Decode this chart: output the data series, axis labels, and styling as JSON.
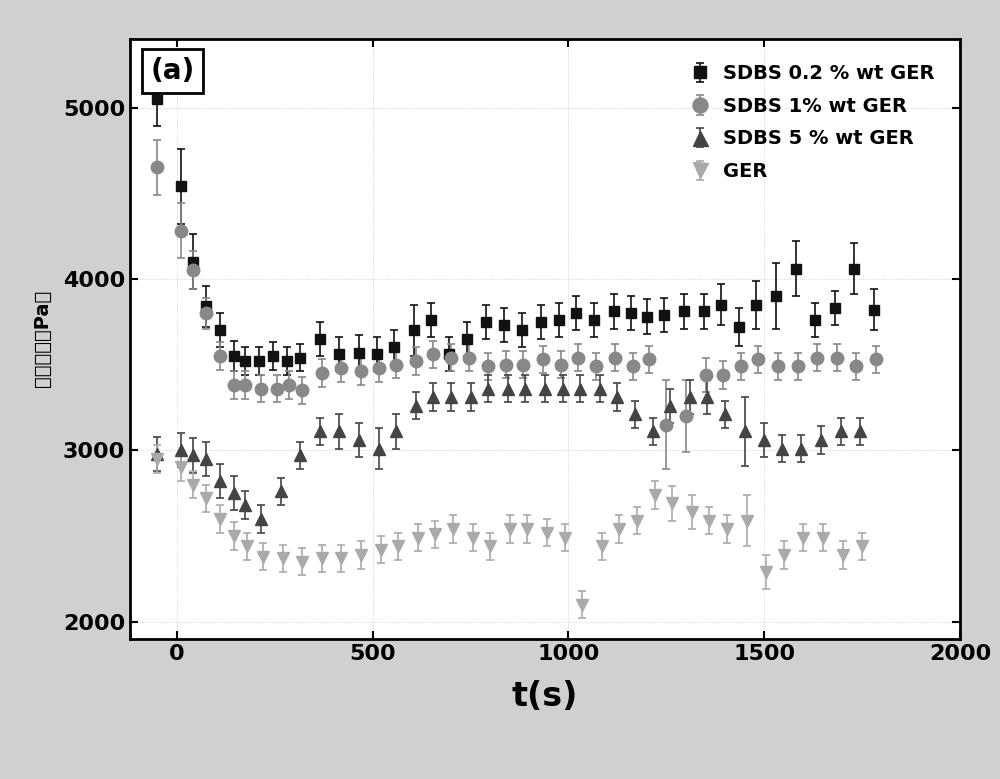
{
  "title": "(a)",
  "xlabel": "t(s)",
  "ylabel": "屈服应力（Pa）",
  "xlim": [
    -120,
    2000
  ],
  "ylim": [
    1900,
    5400
  ],
  "yticks": [
    2000,
    3000,
    4000,
    5000
  ],
  "xticks": [
    0,
    500,
    1000,
    1500,
    2000
  ],
  "outer_bg": "#d0d0d0",
  "plot_bg": "#ffffff",
  "series": [
    {
      "label": "SDBS 0.2 % wt GER",
      "color": "#111111",
      "marker": "s",
      "markersize": 7,
      "x": [
        -50,
        10,
        40,
        75,
        110,
        145,
        175,
        210,
        245,
        280,
        315,
        365,
        415,
        465,
        510,
        555,
        605,
        650,
        695,
        740,
        790,
        835,
        880,
        930,
        975,
        1020,
        1065,
        1115,
        1160,
        1200,
        1245,
        1295,
        1345,
        1390,
        1435,
        1480,
        1530,
        1580,
        1630,
        1680,
        1730,
        1780
      ],
      "y": [
        5050,
        4540,
        4100,
        3840,
        3700,
        3550,
        3520,
        3520,
        3550,
        3520,
        3540,
        3650,
        3560,
        3570,
        3560,
        3600,
        3700,
        3760,
        3560,
        3650,
        3750,
        3730,
        3700,
        3750,
        3760,
        3800,
        3760,
        3810,
        3800,
        3780,
        3790,
        3810,
        3810,
        3850,
        3720,
        3850,
        3900,
        4060,
        3760,
        3830,
        4060,
        3820
      ],
      "yerr": [
        160,
        220,
        160,
        120,
        100,
        90,
        80,
        80,
        80,
        80,
        80,
        100,
        100,
        100,
        100,
        100,
        150,
        100,
        100,
        100,
        100,
        100,
        100,
        100,
        100,
        100,
        100,
        100,
        100,
        100,
        100,
        100,
        100,
        120,
        110,
        140,
        190,
        160,
        100,
        100,
        150,
        120
      ]
    },
    {
      "label": "SDBS 1% wt GER",
      "color": "#888888",
      "marker": "o",
      "markersize": 9,
      "x": [
        -50,
        10,
        40,
        75,
        110,
        145,
        175,
        215,
        255,
        285,
        320,
        370,
        420,
        470,
        515,
        560,
        610,
        655,
        700,
        745,
        795,
        840,
        885,
        935,
        980,
        1025,
        1070,
        1120,
        1165,
        1205,
        1250,
        1300,
        1350,
        1395,
        1440,
        1485,
        1535,
        1585,
        1635,
        1685,
        1735,
        1785
      ],
      "y": [
        4650,
        4280,
        4050,
        3800,
        3550,
        3380,
        3380,
        3360,
        3360,
        3380,
        3350,
        3450,
        3480,
        3460,
        3480,
        3500,
        3520,
        3560,
        3540,
        3540,
        3490,
        3500,
        3500,
        3530,
        3500,
        3540,
        3490,
        3540,
        3490,
        3530,
        3150,
        3200,
        3440,
        3440,
        3490,
        3530,
        3490,
        3490,
        3540,
        3540,
        3490,
        3530
      ],
      "yerr": [
        160,
        160,
        110,
        90,
        80,
        80,
        80,
        80,
        80,
        80,
        80,
        80,
        80,
        80,
        80,
        80,
        80,
        80,
        80,
        80,
        80,
        80,
        80,
        80,
        80,
        80,
        80,
        80,
        80,
        80,
        260,
        210,
        100,
        80,
        80,
        80,
        80,
        80,
        80,
        80,
        80,
        80
      ]
    },
    {
      "label": "SDBS 5 % wt GER",
      "color": "#444444",
      "marker": "^",
      "markersize": 9,
      "x": [
        -50,
        10,
        40,
        75,
        110,
        145,
        175,
        215,
        265,
        315,
        365,
        415,
        465,
        515,
        560,
        610,
        655,
        700,
        750,
        795,
        845,
        890,
        940,
        985,
        1030,
        1080,
        1125,
        1170,
        1215,
        1260,
        1310,
        1355,
        1400,
        1450,
        1500,
        1545,
        1595,
        1645,
        1695,
        1745
      ],
      "y": [
        2980,
        3000,
        2970,
        2950,
        2820,
        2750,
        2680,
        2600,
        2760,
        2970,
        3110,
        3110,
        3060,
        3010,
        3110,
        3260,
        3310,
        3310,
        3310,
        3360,
        3360,
        3360,
        3360,
        3360,
        3360,
        3360,
        3310,
        3210,
        3110,
        3260,
        3310,
        3310,
        3210,
        3110,
        3060,
        3010,
        3010,
        3060,
        3110,
        3110
      ],
      "yerr": [
        100,
        100,
        100,
        100,
        100,
        100,
        80,
        80,
        80,
        80,
        80,
        100,
        100,
        120,
        100,
        80,
        80,
        80,
        80,
        80,
        80,
        80,
        80,
        80,
        80,
        80,
        80,
        80,
        80,
        100,
        100,
        100,
        80,
        200,
        100,
        80,
        80,
        80,
        80,
        80
      ]
    },
    {
      "label": "GER",
      "color": "#aaaaaa",
      "marker": "v",
      "markersize": 9,
      "x": [
        -50,
        10,
        40,
        75,
        110,
        145,
        180,
        220,
        270,
        320,
        370,
        420,
        470,
        520,
        565,
        615,
        660,
        705,
        755,
        800,
        850,
        895,
        945,
        990,
        1035,
        1085,
        1130,
        1175,
        1220,
        1265,
        1315,
        1360,
        1405,
        1455,
        1505,
        1550,
        1600,
        1650,
        1700,
        1750
      ],
      "y": [
        2950,
        2900,
        2800,
        2720,
        2600,
        2500,
        2440,
        2380,
        2370,
        2350,
        2370,
        2370,
        2390,
        2420,
        2440,
        2490,
        2510,
        2540,
        2490,
        2440,
        2540,
        2540,
        2520,
        2490,
        2100,
        2440,
        2540,
        2590,
        2740,
        2690,
        2640,
        2590,
        2540,
        2590,
        2290,
        2390,
        2490,
        2490,
        2390,
        2440
      ],
      "yerr": [
        80,
        80,
        80,
        80,
        80,
        80,
        80,
        80,
        80,
        80,
        80,
        80,
        80,
        80,
        80,
        80,
        80,
        80,
        80,
        80,
        80,
        80,
        80,
        80,
        80,
        80,
        80,
        80,
        80,
        100,
        100,
        80,
        80,
        150,
        100,
        80,
        80,
        80,
        80,
        80
      ]
    }
  ]
}
